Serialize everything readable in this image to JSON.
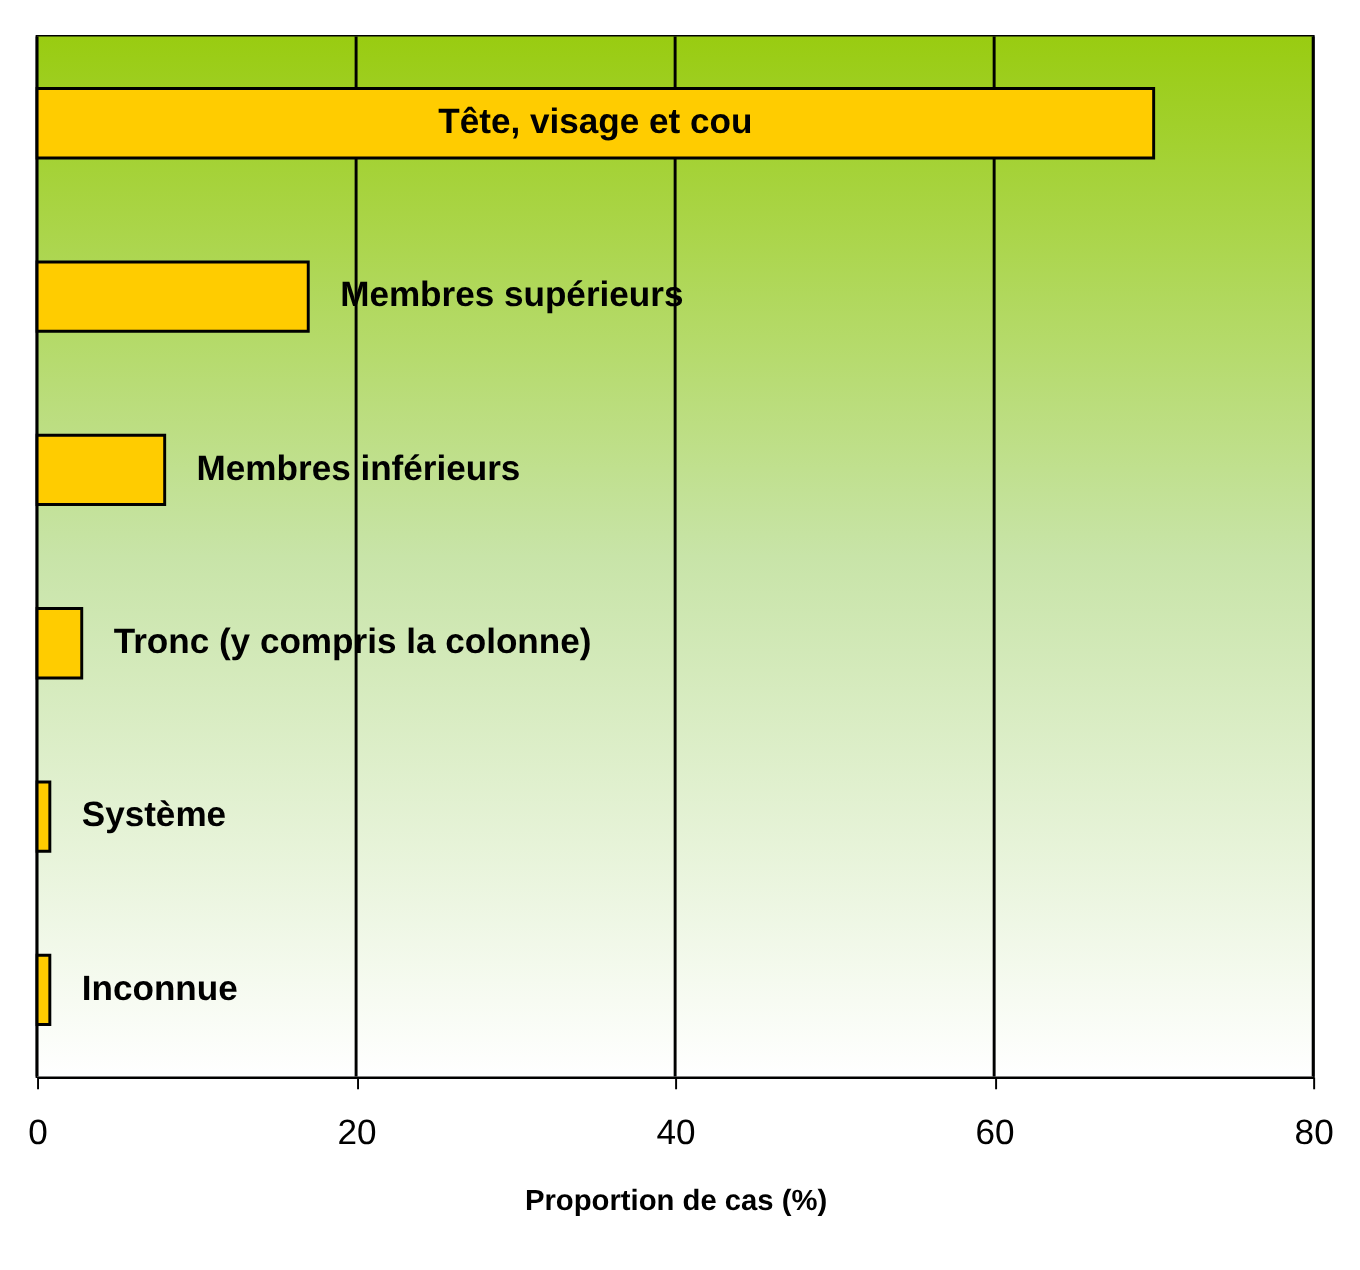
{
  "chart_data": {
    "type": "bar",
    "orientation": "horizontal",
    "categories": [
      "Tête, visage et cou",
      "Membres supérieurs",
      "Membres inférieurs",
      "Tronc (y compris la colonne)",
      "Système",
      "Inconnue"
    ],
    "values": [
      70,
      17,
      8,
      2.8,
      0.8,
      0.8
    ],
    "color": "#ffcc00",
    "xlabel": "Proportion de cas (%)",
    "xlim": [
      0,
      80
    ],
    "xticks": [
      0,
      20,
      40,
      60,
      80
    ],
    "grid": "x",
    "tick_labels": "x"
  }
}
